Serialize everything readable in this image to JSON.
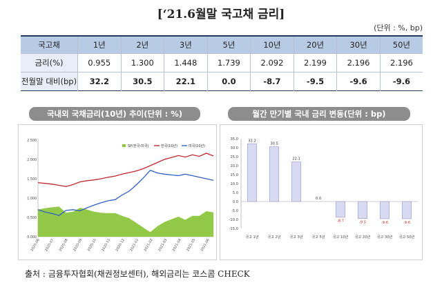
{
  "title": "[‘21.6월말 국고채 금리]",
  "unit_note": "(단위 : %, bp)",
  "table": {
    "corner": "국고채",
    "columns": [
      "1년",
      "2년",
      "3년",
      "5년",
      "10년",
      "20년",
      "30년",
      "50년"
    ],
    "rows": [
      {
        "label": "금리(%)",
        "values": [
          "0.955",
          "1.300",
          "1.448",
          "1.739",
          "2.092",
          "2.199",
          "2.196",
          "2.196"
        ]
      },
      {
        "label": "전월말 대비(bp)",
        "values": [
          "32.2",
          "30.5",
          "22.1",
          "0.0",
          "-8.7",
          "-9.5",
          "-9.6",
          "-9.6"
        ]
      }
    ]
  },
  "left_panel_title": "국내외 국채금리(10년) 추이(단위 : %)",
  "right_panel_title": "월간 만기별 국내 금리 변동(단위 : bp)",
  "source_note": "출처 : 금융투자협회(채권정보센터), 해외금리는 코스콤 CHECK",
  "colors": {
    "korea": "#c0282d",
    "us": "#2f5fbf",
    "spread": "#8dc63f",
    "bar": "#d9d9f2",
    "bar_border": "#9a9ac8",
    "negative_label": "#c0282d",
    "header_bg": "#b8cbe4"
  },
  "chart_data": [
    {
      "type": "line",
      "legend": [
        "SP(한국-미국)",
        "한국(10년)",
        "미국(10년)"
      ],
      "legend_position": "top-right",
      "y_ticks": [
        "0.000",
        "0.500",
        "1.000",
        "1.500",
        "2.000",
        "2.500"
      ],
      "ylim": [
        0,
        2.5
      ],
      "x_ticks": [
        "2020-06",
        "2020-07",
        "2020-08",
        "2020-09",
        "2020-10",
        "2020-11",
        "2020-12",
        "2021-01",
        "2021-02",
        "2021-03",
        "2021-04",
        "2021-05",
        "2021-06"
      ],
      "x": [
        0,
        0.5,
        1,
        1.5,
        2,
        2.5,
        3,
        3.5,
        4,
        4.5,
        5,
        5.5,
        6,
        6.5,
        7,
        7.5,
        8,
        8.5,
        9,
        9.5,
        10,
        10.5,
        11,
        11.5,
        12,
        12.5
      ],
      "series": [
        {
          "name": "한국(10년)",
          "color": "#c0282d",
          "type": "line",
          "values": [
            1.4,
            1.38,
            1.36,
            1.33,
            1.3,
            1.35,
            1.42,
            1.45,
            1.47,
            1.5,
            1.54,
            1.57,
            1.62,
            1.66,
            1.7,
            1.76,
            1.84,
            1.92,
            2.0,
            2.05,
            2.1,
            2.06,
            2.12,
            2.08,
            2.16,
            2.09
          ]
        },
        {
          "name": "미국(10년)",
          "color": "#2f5fbf",
          "type": "line",
          "values": [
            0.7,
            0.64,
            0.6,
            0.55,
            0.68,
            0.7,
            0.67,
            0.75,
            0.82,
            0.88,
            0.93,
            0.96,
            1.08,
            1.18,
            1.34,
            1.52,
            1.72,
            1.65,
            1.62,
            1.6,
            1.58,
            1.62,
            1.58,
            1.54,
            1.5,
            1.46
          ]
        },
        {
          "name": "SP(한국-미국)",
          "color": "#8dc63f",
          "type": "area",
          "values": [
            0.7,
            0.74,
            0.76,
            0.78,
            0.62,
            0.65,
            0.75,
            0.7,
            0.65,
            0.62,
            0.61,
            0.61,
            0.54,
            0.48,
            0.36,
            0.24,
            0.12,
            0.27,
            0.38,
            0.45,
            0.52,
            0.44,
            0.54,
            0.54,
            0.66,
            0.63
          ]
        }
      ]
    },
    {
      "type": "bar",
      "categories": [
        "국고 1년",
        "국고 2년",
        "국고 3년",
        "국고 5년",
        "국고 10년",
        "국고 20년",
        "국고 30년",
        "국고 50년"
      ],
      "values": [
        32.2,
        30.5,
        22.1,
        0.0,
        -8.7,
        -9.5,
        -9.6,
        -9.6
      ],
      "data_labels": [
        "32.2",
        "30.5",
        "22.1",
        "0.0",
        "-8.7",
        "-9.5",
        "-9.6",
        "-9.6"
      ],
      "y_ticks": [
        "35.0",
        "30.0",
        "25.0",
        "20.0",
        "15.0",
        "10.0",
        "5.0",
        "0.0",
        "-5.0",
        "-10.0",
        "-15.0"
      ],
      "ylim": [
        -15,
        35
      ],
      "grid": false
    }
  ]
}
